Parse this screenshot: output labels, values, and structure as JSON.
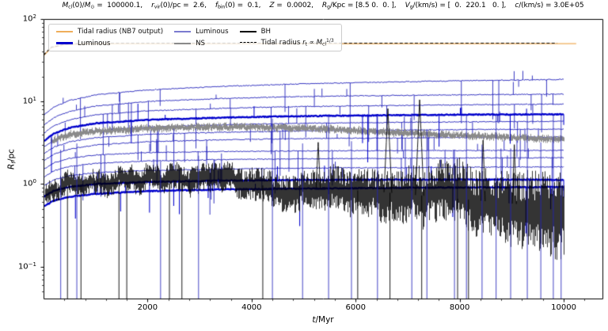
{
  "title_segments": [
    {
      "t": "M",
      "i": true
    },
    {
      "t": "cl",
      "sub": true
    },
    {
      "t": "(0)/"
    },
    {
      "t": "M",
      "i": true
    },
    {
      "t": "⊙",
      "sub": true
    },
    {
      "t": " =  100000.1,    "
    },
    {
      "t": "r",
      "i": true
    },
    {
      "t": "vir",
      "sub": true
    },
    {
      "t": "(0)/pc =  2.6,    "
    },
    {
      "t": "f",
      "i": true
    },
    {
      "t": "bin",
      "sub": true
    },
    {
      "t": "(0) =  0.1,    "
    },
    {
      "t": "Z",
      "i": true
    },
    {
      "t": " =  0.0002,    "
    },
    {
      "t": "R",
      "i": true
    },
    {
      "t": "g",
      "sub": true
    },
    {
      "t": "/Kpc = [8.5 0.  0. ],    "
    },
    {
      "t": "V",
      "i": true
    },
    {
      "t": "g",
      "sub": true
    },
    {
      "t": "/(km/s) = [  0.  220.1   0. ],    "
    },
    {
      "t": "c",
      "i": true
    },
    {
      "t": "/(km/s) = 3.0E+05"
    }
  ],
  "axes": {
    "xlabel_segments": [
      {
        "t": "t",
        "i": true
      },
      {
        "t": "/Myr"
      }
    ],
    "ylabel_segments": [
      {
        "t": "R",
        "i": true
      },
      {
        "t": "f",
        "sub": true,
        "i": true
      },
      {
        "t": "/pc"
      }
    ],
    "x_ticks": [
      2000,
      4000,
      6000,
      8000,
      10000
    ],
    "x_minor_step": 400,
    "xlim": [
      0,
      10760
    ],
    "ylim": [
      0.04,
      100
    ],
    "y_ticks": [
      {
        "v": 100,
        "exp": "2"
      },
      {
        "v": 10,
        "exp": "1"
      },
      {
        "v": 1,
        "exp": "0"
      },
      {
        "v": 0.1,
        "exp": "−1"
      }
    ]
  },
  "legend": {
    "columns": [
      {
        "items": [
          {
            "segments": [
              {
                "t": "Tidal radius (NB7 output)"
              }
            ],
            "color": "#efae5a",
            "lw": 2,
            "dash": false
          },
          {
            "segments": [
              {
                "t": "Luminous"
              }
            ],
            "color": "#0000cc",
            "lw": 3,
            "dash": false
          }
        ]
      },
      {
        "items": [
          {
            "segments": [
              {
                "t": "Luminous"
              }
            ],
            "color": "#7b7bd0",
            "lw": 1.4,
            "dash": false
          },
          {
            "segments": [
              {
                "t": "NS"
              }
            ],
            "color": "#8a8a8a",
            "lw": 2,
            "dash": false
          }
        ]
      },
      {
        "items": [
          {
            "segments": [
              {
                "t": "BH"
              }
            ],
            "color": "#000000",
            "lw": 1.8,
            "dash": false
          },
          {
            "segments": [
              {
                "t": "Tidal radius "
              },
              {
                "t": "r",
                "i": true
              },
              {
                "t": "t",
                "sub": true
              },
              {
                "t": " ∝ "
              },
              {
                "t": "M",
                "i": true
              },
              {
                "t": "cl",
                "sub": true
              },
              {
                "t": "1/3",
                "sup": true
              }
            ],
            "color": "#000000",
            "lw": 1.3,
            "dash": true
          }
        ]
      }
    ]
  },
  "chart_data": {
    "type": "line",
    "y_scale": "log",
    "x_unit": "Myr",
    "y_unit": "pc",
    "t_end": 10000,
    "tidal_radius_nb7": {
      "color": "#efae5a",
      "lw": 1.4,
      "t": [
        0,
        150,
        400,
        800,
        10240
      ],
      "R": [
        36,
        45,
        48.8,
        50,
        50.3
      ]
    },
    "tidal_radius_analytic": {
      "color": "#111111",
      "lw": 1.1,
      "dash": [
        4,
        2.4
      ],
      "t": [
        0,
        150,
        400,
        800,
        9870
      ],
      "R": [
        36.5,
        45.5,
        49.4,
        50.9,
        51
      ]
    },
    "luminous": {
      "color_thin": "#2323bb",
      "color_thick": "#0000cc",
      "t": [
        0,
        200,
        500,
        1000,
        2000,
        3500,
        5000,
        7000,
        8500,
        10000
      ],
      "curves": [
        {
          "thick": false,
          "R": [
            6.8,
            8.6,
            10.3,
            12.0,
            13.8,
            15.3,
            16.4,
            17.4,
            18.0,
            18.5
          ]
        },
        {
          "thick": false,
          "R": [
            5.1,
            6.4,
            7.6,
            8.8,
            10.0,
            10.9,
            11.5,
            11.9,
            12.1,
            12.3
          ]
        },
        {
          "thick": false,
          "R": [
            4.1,
            5.1,
            6.0,
            6.9,
            7.7,
            8.3,
            8.7,
            9.0,
            9.15,
            9.3
          ]
        },
        {
          "thick": true,
          "R": [
            3.3,
            4.1,
            4.8,
            5.45,
            6.0,
            6.4,
            6.65,
            6.85,
            6.95,
            7.0
          ]
        },
        {
          "thick": false,
          "R": [
            2.8,
            3.4,
            3.95,
            4.45,
            4.9,
            5.25,
            5.45,
            5.6,
            5.68,
            5.75
          ]
        },
        {
          "thick": false,
          "R": [
            2.3,
            2.8,
            3.25,
            3.65,
            4.0,
            4.25,
            4.4,
            4.52,
            4.58,
            4.62
          ]
        },
        {
          "thick": false,
          "R": [
            1.9,
            2.3,
            2.65,
            2.98,
            3.25,
            3.45,
            3.55,
            3.62,
            3.68,
            3.72
          ]
        },
        {
          "thick": false,
          "R": [
            1.5,
            1.8,
            2.05,
            2.25,
            2.4,
            2.48,
            2.52,
            2.54,
            2.55,
            2.55
          ]
        },
        {
          "thick": false,
          "R": [
            1.2,
            1.45,
            1.63,
            1.78,
            1.9,
            1.98,
            2.02,
            2.05,
            2.07,
            2.08
          ]
        },
        {
          "thick": false,
          "R": [
            0.95,
            1.13,
            1.26,
            1.37,
            1.46,
            1.52,
            1.56,
            1.58,
            1.6,
            1.61
          ]
        },
        {
          "thick": true,
          "R": [
            0.7,
            0.83,
            0.92,
            1.0,
            1.06,
            1.1,
            1.12,
            1.13,
            1.13,
            1.12
          ]
        },
        {
          "thick": true,
          "R": [
            0.53,
            0.63,
            0.7,
            0.76,
            0.82,
            0.86,
            0.88,
            0.9,
            0.91,
            0.92
          ]
        }
      ]
    },
    "ns": {
      "color": "#8a8a8a",
      "t": [
        140,
        500,
        1000,
        2000,
        3000,
        4000,
        5000,
        6500,
        8000,
        9000,
        10000
      ],
      "R": [
        3.3,
        4.0,
        4.35,
        4.7,
        4.9,
        4.9,
        4.75,
        4.3,
        3.9,
        3.65,
        3.45
      ]
    },
    "bh": {
      "color": "#000000",
      "t": [
        30,
        200,
        500,
        1000,
        2000,
        3500,
        5000,
        6500,
        8000,
        9000,
        10000
      ],
      "R": [
        0.75,
        0.85,
        0.92,
        0.98,
        1.02,
        1.0,
        0.92,
        0.8,
        0.66,
        0.58,
        0.5
      ],
      "up_spikes": [
        {
          "t": 5280,
          "peak": 3.2,
          "hw": 40
        },
        {
          "t": 6620,
          "peak": 8.2,
          "hw": 75
        },
        {
          "t": 7230,
          "peak": 10.5,
          "hw": 80
        },
        {
          "t": 8450,
          "peak": 3.4,
          "hw": 40
        },
        {
          "t": 9050,
          "peak": 3.0,
          "hw": 40
        }
      ],
      "drop_times": [
        460,
        720,
        1450,
        1600,
        2420,
        2660,
        4215,
        6040,
        6660,
        7270,
        7960,
        8170
      ]
    },
    "blue_events": [
      [
        330,
        2.6
      ],
      [
        640,
        3.1
      ],
      [
        2250,
        1.9
      ],
      [
        2980,
        2.2
      ],
      [
        4400,
        6.2
      ],
      [
        4980,
        3.1
      ],
      [
        5480,
        7.0
      ],
      [
        5920,
        3.3
      ],
      [
        6420,
        6.8
      ],
      [
        7080,
        7.2
      ],
      [
        7370,
        4.6
      ],
      [
        7900,
        2.6
      ],
      [
        8130,
        6.9
      ],
      [
        8430,
        3.0
      ],
      [
        8700,
        7.0
      ],
      [
        8980,
        2.7
      ],
      [
        9300,
        6.9
      ],
      [
        9560,
        3.2
      ],
      [
        9800,
        7.0
      ],
      [
        9950,
        6.8
      ]
    ]
  }
}
